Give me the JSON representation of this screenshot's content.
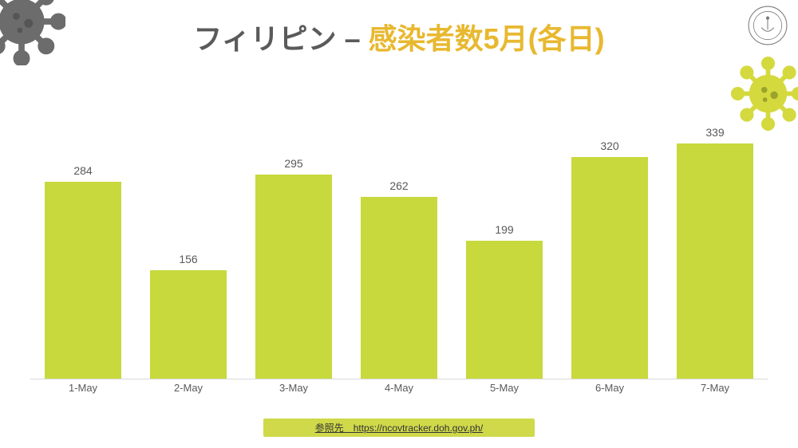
{
  "title": {
    "part1": "フィリピン – ",
    "part2": "感染者数5月(各日)",
    "fontsize": 36,
    "color1": "#5a5a5a",
    "color2": "#e8b82f"
  },
  "chart": {
    "type": "bar",
    "bar_color": "#c7d93c",
    "label_color": "#595959",
    "axis_color": "#d9d9d9",
    "background_color": "#ffffff",
    "bar_width_pct": 72,
    "value_label_fontsize": 14,
    "xtick_fontsize": 13,
    "y_max": 360,
    "categories": [
      "1-May",
      "2-May",
      "3-May",
      "4-May",
      "5-May",
      "6-May",
      "7-May"
    ],
    "values": [
      284,
      156,
      295,
      262,
      199,
      320,
      339
    ]
  },
  "source": {
    "prefix": "参照先　",
    "url": "https://ncovtracker.doh.gov.ph/",
    "full": "参照先　https://ncovtracker.doh.gov.ph/",
    "bar_color": "#cfd94a",
    "fontsize": 12
  },
  "decor": {
    "virus_grey_color": "#6c6c6c",
    "virus_yellow_color": "#d4d93e",
    "virus_yellow_shadow": "#9aa32b",
    "seal_stroke": "#7a7a7a"
  }
}
